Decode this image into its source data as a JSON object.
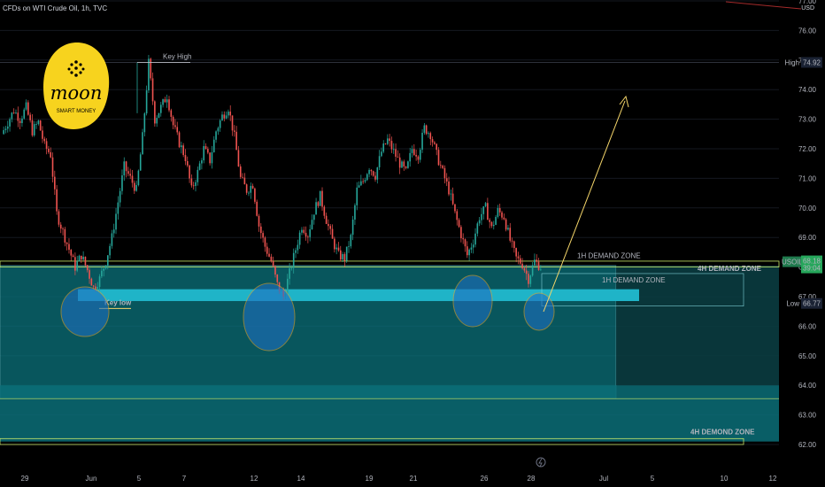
{
  "header": {
    "title": "CFDs on WTI Crude Oil, 1h, TVC"
  },
  "axis": {
    "currency": "USD"
  },
  "logo": {
    "main": "moon",
    "sub": "SMART MONEY"
  },
  "annotations": {
    "key_high": "Key High",
    "key_low": "Key low",
    "zone_1h_top": "1H DEMAND ZONE",
    "zone_1h_inner": "1H DEMAND ZONE",
    "zone_4h_upper": "4H DEMAND ZONE",
    "zone_4h_lower": "4H DEMOND ZONE"
  },
  "price_labels": {
    "high": {
      "label": "High",
      "value": "74.92"
    },
    "current": {
      "label": "USOIL",
      "value": "68.18",
      "countdown": "39:04"
    },
    "low": {
      "label": "Low",
      "value": "66.77"
    }
  },
  "colors": {
    "bull": "#26a69a",
    "bear": "#ef5350",
    "zone": "#0b6f78",
    "zone_light": "#1fb4c8",
    "arrow": "#f5d66a",
    "logo": "#f7d31e"
  },
  "chart_data": {
    "type": "candlestick",
    "title": "CFDs on WTI Crude Oil, 1h, TVC",
    "ylim": [
      61.8,
      78.5
    ],
    "y_ticks": [
      "77.00",
      "76.00",
      "75.00",
      "74.00",
      "73.00",
      "72.00",
      "71.00",
      "70.00",
      "69.00",
      "68.00",
      "67.00",
      "66.00",
      "65.00",
      "64.00",
      "63.00",
      "62.00"
    ],
    "x_ticks": [
      "29",
      "Jun",
      "5",
      "7",
      "12",
      "14",
      "19",
      "21",
      "26",
      "28",
      "Jul",
      "5",
      "10",
      "12"
    ],
    "close_path": [
      72.5,
      72.9,
      73.3,
      73.0,
      73.4,
      72.6,
      72.9,
      72.1,
      71.8,
      69.8,
      69.2,
      68.6,
      68.0,
      68.4,
      67.9,
      67.3,
      67.6,
      68.2,
      69.0,
      70.2,
      71.4,
      71.0,
      70.6,
      72.4,
      74.9,
      73.0,
      73.4,
      73.8,
      72.8,
      72.2,
      71.7,
      70.6,
      71.2,
      72.0,
      71.6,
      72.6,
      73.1,
      73.4,
      72.4,
      71.0,
      70.6,
      70.8,
      69.4,
      68.7,
      68.2,
      67.4,
      67.0,
      67.8,
      68.6,
      69.4,
      69.1,
      69.9,
      70.4,
      69.6,
      68.9,
      68.4,
      68.3,
      69.0,
      70.6,
      70.9,
      71.4,
      71.1,
      71.9,
      72.3,
      71.9,
      71.5,
      71.2,
      72.0,
      71.8,
      72.7,
      72.5,
      71.8,
      71.2,
      70.6,
      69.8,
      69.1,
      68.4,
      68.9,
      69.7,
      70.0,
      69.3,
      69.9,
      69.7,
      68.9,
      68.3,
      68.1,
      67.6,
      68.2,
      68.0
    ]
  }
}
